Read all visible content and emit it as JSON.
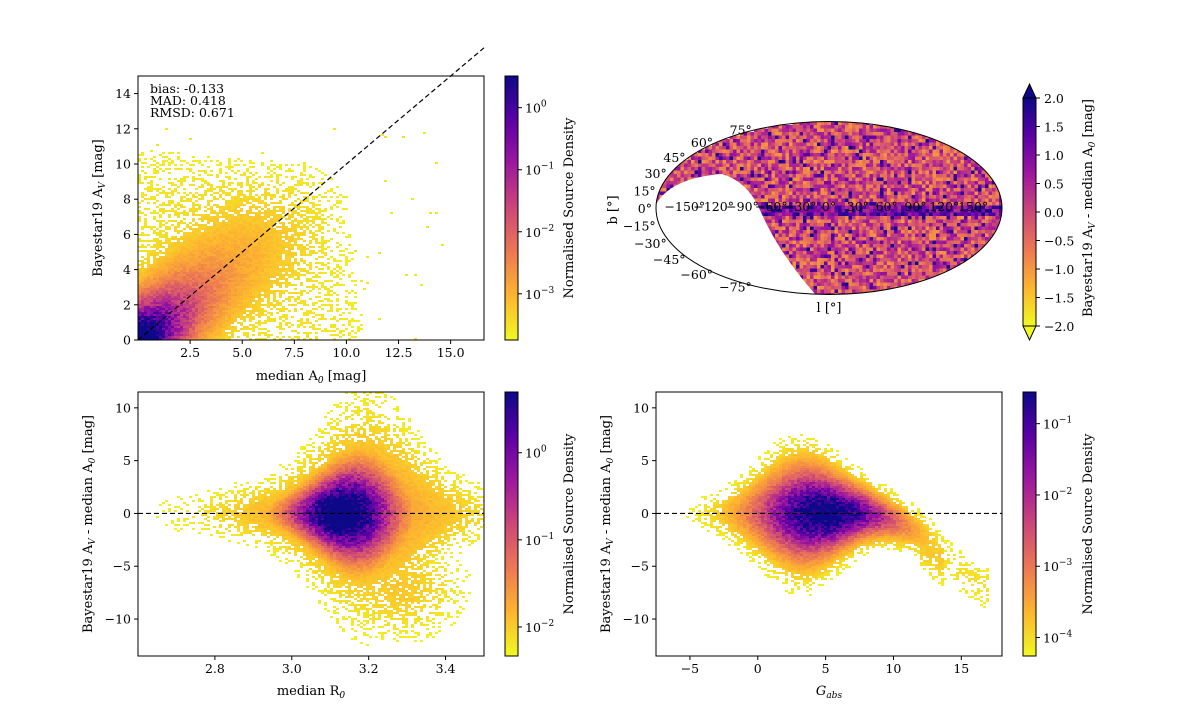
{
  "figure": {
    "colormap": [
      "#0d0887",
      "#5c01a6",
      "#9c179e",
      "#cc4778",
      "#ed7953",
      "#fdb42f",
      "#f0f921"
    ]
  },
  "chart_data": [
    {
      "id": "p1",
      "type": "heatmap",
      "title": "",
      "xlabel": "median A",
      "xlabel_sub": "0",
      "xlabel_unit": " [mag]",
      "ylabel": "Bayestar19 A",
      "ylabel_sub": "V",
      "ylabel_unit": " [mag]",
      "xlim": [
        0,
        16.6
      ],
      "ylim": [
        0,
        15
      ],
      "xticks": [
        2.5,
        5.0,
        7.5,
        10.0,
        12.5,
        15.0
      ],
      "xtick_labels": [
        "2.5",
        "5.0",
        "7.5",
        "10.0",
        "12.5",
        "15.0"
      ],
      "yticks": [
        0,
        2,
        4,
        6,
        8,
        10,
        12,
        14
      ],
      "ytick_labels": [
        "0",
        "2",
        "4",
        "6",
        "8",
        "10",
        "12",
        "14"
      ],
      "reference_line": {
        "style": "dashed",
        "x": [
          0,
          16.6
        ],
        "y": [
          0,
          16.6
        ]
      },
      "annotations": [
        "bias: -0.133",
        "MAD: 0.418",
        "RMSD: 0.671"
      ],
      "colorbar": {
        "label": "Normalised Source Density",
        "scale": "log",
        "ticks": [
          {
            "label": "10",
            "exp": "0",
            "frac": 0.88
          },
          {
            "label": "10",
            "exp": "−1",
            "frac": 0.645
          },
          {
            "label": "10",
            "exp": "−2",
            "frac": 0.41
          },
          {
            "label": "10",
            "exp": "−3",
            "frac": 0.175
          }
        ]
      }
    },
    {
      "id": "p2",
      "type": "heatmap",
      "projection": "mollweide",
      "xlabel": "l [°]",
      "ylabel": "b [°]",
      "lon_labels": [
        "−150°",
        "−120°",
        "−90°",
        "−60°",
        "−30°",
        "0°",
        "30°",
        "60°",
        "90°",
        "120°",
        "150°"
      ],
      "lat_labels_left": [
        {
          "text": "75°",
          "b": 75
        },
        {
          "text": "60°",
          "b": 60
        },
        {
          "text": "45°",
          "b": 45
        },
        {
          "text": "30°",
          "b": 30
        },
        {
          "text": "15°",
          "b": 15
        },
        {
          "text": "0°",
          "b": 0
        },
        {
          "text": "−15°",
          "b": -15
        },
        {
          "text": "−30°",
          "b": -30
        },
        {
          "text": "−45°",
          "b": -45
        },
        {
          "text": "−60°",
          "b": -60
        },
        {
          "text": "−75°",
          "b": -75
        }
      ],
      "colorbar": {
        "label": "Bayestar19 A",
        "label_sub": "V",
        "label_rest": " - median A",
        "label_sub2": "0",
        "label_unit": " [mag]",
        "vmin": -2.0,
        "vmax": 2.0,
        "extend": "both",
        "ticks": [
          "2.0",
          "1.5",
          "1.0",
          "0.5",
          "0.0",
          "−0.5",
          "−1.0",
          "−1.5",
          "−2.0"
        ]
      }
    },
    {
      "id": "p3",
      "type": "heatmap",
      "xlabel": "median R",
      "xlabel_sub": "0",
      "xlabel_unit": "",
      "ylabel": "Bayestar19 A",
      "ylabel_sub": "V",
      "ylabel_mid": " - median A",
      "ylabel_sub2": "0",
      "ylabel_unit": " [mag]",
      "xlim": [
        2.6,
        3.5
      ],
      "ylim": [
        -13.5,
        11.5
      ],
      "xticks": [
        2.8,
        3.0,
        3.2,
        3.4
      ],
      "xtick_labels": [
        "2.8",
        "3.0",
        "3.2",
        "3.4"
      ],
      "yticks": [
        -10,
        -5,
        0,
        5,
        10
      ],
      "ytick_labels": [
        "−10",
        "−5",
        "0",
        "5",
        "10"
      ],
      "reference_line": {
        "style": "dashed",
        "y": 0
      },
      "colorbar": {
        "label": "Normalised Source Density",
        "scale": "log",
        "ticks": [
          {
            "label": "10",
            "exp": "0",
            "frac": 0.77
          },
          {
            "label": "10",
            "exp": "−1",
            "frac": 0.44
          },
          {
            "label": "10",
            "exp": "−2",
            "frac": 0.11
          }
        ]
      }
    },
    {
      "id": "p4",
      "type": "heatmap",
      "xlabel": "G",
      "xlabel_sub": "abs",
      "xlabel_unit": "",
      "ylabel": "Bayestar19 A",
      "ylabel_sub": "V",
      "ylabel_mid": " - median A",
      "ylabel_sub2": "0",
      "ylabel_unit": " [mag]",
      "xlim": [
        -7.5,
        18
      ],
      "ylim": [
        -13.5,
        11.5
      ],
      "xticks": [
        -5,
        0,
        5,
        10,
        15
      ],
      "xtick_labels": [
        "−5",
        "0",
        "5",
        "10",
        "15"
      ],
      "yticks": [
        -10,
        -5,
        0,
        5,
        10
      ],
      "ytick_labels": [
        "−10",
        "−5",
        "0",
        "5",
        "10"
      ],
      "reference_line": {
        "style": "dashed",
        "y": 0
      },
      "colorbar": {
        "label": "Normalised Source Density",
        "scale": "log",
        "ticks": [
          {
            "label": "10",
            "exp": "−1",
            "frac": 0.88
          },
          {
            "label": "10",
            "exp": "−2",
            "frac": 0.61
          },
          {
            "label": "10",
            "exp": "−3",
            "frac": 0.34
          },
          {
            "label": "10",
            "exp": "−4",
            "frac": 0.07
          }
        ]
      }
    }
  ]
}
